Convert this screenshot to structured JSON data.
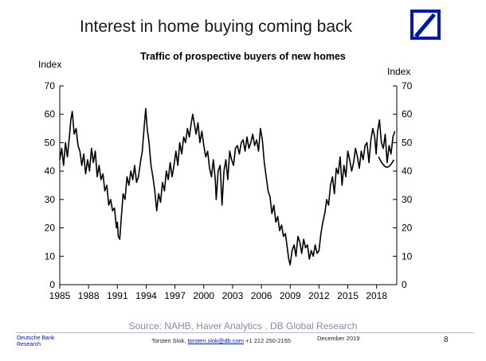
{
  "slide": {
    "title": "Interest in home buying coming back",
    "source": "Source: NAHB, Haver Analytics , DB Global Research",
    "brand_line1": "Deutsche Bank",
    "brand_line2": "Research",
    "author_name": "Torsten Slok,",
    "author_email": "torsten.slok@db.com",
    "author_phone": "+1 212 250-2155",
    "date": "December 2019",
    "page_number": "8",
    "logo_color": "#0018a8"
  },
  "chart_data": {
    "type": "line",
    "title": "Traffic of prospective buyers of new homes",
    "ylabel_left": "Index",
    "ylabel_right": "Index",
    "xlabel": "",
    "ylim": [
      0,
      70
    ],
    "xlim": [
      1985,
      2020.1
    ],
    "y_ticks": [
      "0",
      "10",
      "20",
      "30",
      "40",
      "50",
      "60",
      "70"
    ],
    "x_ticks": [
      "1985",
      "1988",
      "1991",
      "1994",
      "1997",
      "2000",
      "2003",
      "2006",
      "2009",
      "2012",
      "2015",
      "2018"
    ],
    "x_tick_values": [
      1985,
      1988,
      1991,
      1994,
      1997,
      2000,
      2003,
      2006,
      2009,
      2012,
      2015,
      2018
    ],
    "line_color": "#000000",
    "grid": false,
    "legend": "none",
    "series": [
      {
        "x": [
          1985.0,
          1985.2,
          1985.4,
          1985.6,
          1985.8,
          1986.0,
          1986.15,
          1986.3,
          1986.5,
          1986.7,
          1986.9,
          1987.1,
          1987.3,
          1987.5,
          1987.7,
          1987.9,
          1988.1,
          1988.3,
          1988.5,
          1988.7,
          1988.9,
          1989.1,
          1989.3,
          1989.5,
          1989.7,
          1989.9,
          1990.1,
          1990.3,
          1990.5,
          1990.7,
          1990.9,
          1991.0,
          1991.1,
          1991.25,
          1991.4,
          1991.6,
          1991.8,
          1992.0,
          1992.2,
          1992.4,
          1992.6,
          1992.8,
          1993.0,
          1993.2,
          1993.4,
          1993.6,
          1993.8,
          1993.95,
          1994.1,
          1994.3,
          1994.5,
          1994.7,
          1994.9,
          1995.1,
          1995.3,
          1995.5,
          1995.7,
          1995.9,
          1996.1,
          1996.3,
          1996.5,
          1996.7,
          1996.9,
          1997.1,
          1997.3,
          1997.5,
          1997.7,
          1997.9,
          1998.1,
          1998.3,
          1998.5,
          1998.7,
          1998.85,
          1999.0,
          1999.2,
          1999.4,
          1999.6,
          1999.8,
          2000.0,
          2000.2,
          2000.4,
          2000.6,
          2000.8,
          2001.0,
          2001.2,
          2001.3,
          2001.5,
          2001.7,
          2001.9,
          2002.1,
          2002.3,
          2002.5,
          2002.7,
          2002.9,
          2003.1,
          2003.3,
          2003.5,
          2003.7,
          2003.9,
          2004.1,
          2004.3,
          2004.5,
          2004.7,
          2004.9,
          2005.1,
          2005.3,
          2005.5,
          2005.7,
          2005.9,
          2006.1,
          2006.3,
          2006.5,
          2006.7,
          2006.9,
          2007.1,
          2007.3,
          2007.5,
          2007.7,
          2007.9,
          2008.1,
          2008.3,
          2008.5,
          2008.7,
          2008.85,
          2009.0,
          2009.2,
          2009.4,
          2009.6,
          2009.8,
          2010.0,
          2010.2,
          2010.4,
          2010.6,
          2010.8,
          2011.0,
          2011.2,
          2011.4,
          2011.6,
          2011.8,
          2012.0,
          2012.2,
          2012.4,
          2012.6,
          2012.8,
          2013.0,
          2013.2,
          2013.4,
          2013.6,
          2013.8,
          2014.0,
          2014.2,
          2014.4,
          2014.6,
          2014.8,
          2015.0,
          2015.2,
          2015.4,
          2015.6,
          2015.8,
          2016.0,
          2016.2,
          2016.4,
          2016.6,
          2016.8,
          2017.0,
          2017.2,
          2017.4,
          2017.6,
          2017.8,
          2017.95,
          2018.1,
          2018.3,
          2018.5,
          2018.7,
          2018.9,
          2019.1,
          2019.3,
          2019.5,
          2019.7,
          2019.9
        ],
        "values": [
          44,
          48,
          42,
          50,
          45,
          52,
          58,
          61,
          53,
          55,
          49,
          47,
          42,
          46,
          39,
          44,
          40,
          48,
          43,
          47,
          38,
          42,
          37,
          39,
          33,
          35,
          28,
          30,
          26,
          27,
          20,
          22,
          17,
          16,
          23,
          32,
          30,
          38,
          35,
          40,
          37,
          42,
          36,
          38,
          43,
          47,
          56,
          62,
          55,
          50,
          42,
          38,
          33,
          26,
          32,
          29,
          36,
          33,
          40,
          37,
          43,
          38,
          42,
          47,
          42,
          50,
          46,
          52,
          50,
          55,
          52,
          57,
          60,
          57,
          53,
          57,
          50,
          54,
          49,
          45,
          47,
          41,
          38,
          44,
          37,
          30,
          40,
          42,
          28,
          40,
          44,
          37,
          47,
          44,
          42,
          48,
          49,
          46,
          50,
          51,
          47,
          52,
          48,
          50,
          53,
          49,
          51,
          47,
          55,
          51,
          43,
          38,
          33,
          31,
          25,
          28,
          22,
          24,
          19,
          21,
          17,
          18,
          13,
          9,
          7,
          12,
          14,
          10,
          17,
          15,
          11,
          16,
          13,
          14,
          9,
          12,
          10,
          14,
          11,
          12,
          18,
          22,
          25,
          30,
          28,
          35,
          38,
          32,
          41,
          39,
          45,
          35,
          42,
          38,
          47,
          44,
          40,
          43,
          48,
          45,
          41,
          47,
          44,
          49,
          50,
          43,
          51,
          55,
          52,
          46,
          54,
          58,
          50,
          48,
          53,
          43,
          49,
          46,
          52,
          54
        ]
      }
    ],
    "annotations": [
      {
        "type": "curve",
        "x": [
          2018.2,
          2018.6,
          2019.0,
          2019.4,
          2019.8
        ],
        "values": [
          45,
          42.5,
          41.2,
          41.8,
          44
        ]
      }
    ]
  }
}
